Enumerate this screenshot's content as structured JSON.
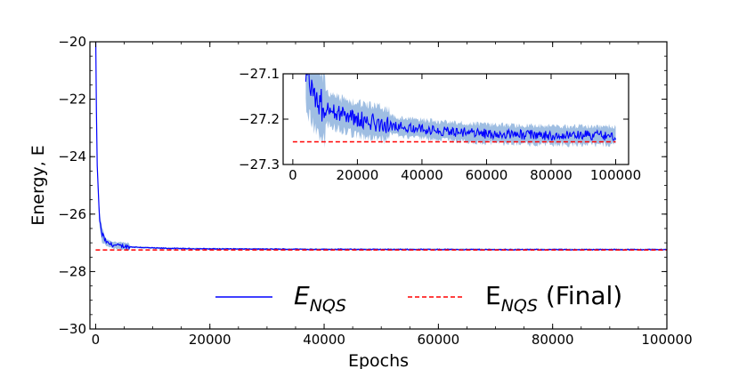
{
  "chart_data": [
    {
      "id": "main",
      "type": "line",
      "xlabel": "Epochs",
      "ylabel": "Energy, E",
      "xlim": [
        -1000,
        100000
      ],
      "ylim": [
        -30,
        -20
      ],
      "xticks": [
        0,
        20000,
        40000,
        60000,
        80000,
        100000
      ],
      "xtick_labels": [
        "0",
        "20000",
        "40000",
        "60000",
        "80000",
        "100000"
      ],
      "yticks": [
        -30,
        -28,
        -26,
        -24,
        -22,
        -20
      ],
      "ytick_labels": [
        "−30",
        "−28",
        "−26",
        "−24",
        "−22",
        "−20"
      ],
      "legend": {
        "placement": "lower-right",
        "entries": [
          {
            "label_main": "E",
            "label_sub": "NQS",
            "italic": true,
            "style": "solid",
            "color": "#0000ff"
          },
          {
            "label_main": "E",
            "label_sub": "NQS",
            "suffix": " (Final)",
            "italic": false,
            "style": "dashed",
            "color": "#ff0000"
          }
        ]
      },
      "series": [
        {
          "name": "E_NQS",
          "color": "#0000ff",
          "band_color": "#7fa8d8",
          "x": [
            0,
            100,
            250,
            500,
            800,
            1200,
            1600,
            2000,
            2600,
            3200,
            4000,
            5000,
            6000,
            7000,
            8000,
            10000,
            12000,
            15000,
            20000,
            30000,
            40000,
            50000,
            60000,
            70000,
            80000,
            90000,
            100000
          ],
          "y": [
            -19.5,
            -22.0,
            -24.0,
            -25.6,
            -26.4,
            -26.75,
            -26.9,
            -27.0,
            -27.05,
            -27.08,
            -27.1,
            -27.12,
            -27.14,
            -27.15,
            -27.16,
            -27.18,
            -27.19,
            -27.2,
            -27.21,
            -27.22,
            -27.225,
            -27.23,
            -27.23,
            -27.235,
            -27.235,
            -27.235,
            -27.235
          ]
        },
        {
          "name": "E_NQS (Final)",
          "color": "#ff0000",
          "dashed": true,
          "x": [
            0,
            100000
          ],
          "y": [
            -27.25,
            -27.25
          ]
        }
      ]
    },
    {
      "id": "inset",
      "type": "line",
      "xlim": [
        -3000,
        104000
      ],
      "ylim": [
        -27.3,
        -27.1
      ],
      "xticks": [
        0,
        20000,
        40000,
        60000,
        80000,
        100000
      ],
      "xtick_labels": [
        "0",
        "20000",
        "40000",
        "60000",
        "80000",
        "100000"
      ],
      "yticks": [
        -27.3,
        -27.2,
        -27.1
      ],
      "ytick_labels": [
        "−27.3",
        "−27.2",
        "−27.1"
      ],
      "series": [
        {
          "name": "E_NQS",
          "color": "#0000ff",
          "band_color": "#7fa8d8",
          "x": [
            4000,
            6000,
            8000,
            10000,
            12000,
            15000,
            20000,
            25000,
            30000,
            35000,
            40000,
            45000,
            50000,
            55000,
            60000,
            65000,
            70000,
            75000,
            80000,
            85000,
            90000,
            95000,
            100000
          ],
          "y": [
            -27.1,
            -27.14,
            -27.165,
            -27.175,
            -27.18,
            -27.19,
            -27.2,
            -27.207,
            -27.213,
            -27.218,
            -27.222,
            -27.225,
            -27.228,
            -27.23,
            -27.232,
            -27.233,
            -27.234,
            -27.235,
            -27.235,
            -27.236,
            -27.236,
            -27.236,
            -27.236
          ]
        },
        {
          "name": "E_NQS (Final)",
          "color": "#ff0000",
          "dashed": true,
          "x": [
            0,
            100000
          ],
          "y": [
            -27.25,
            -27.25
          ]
        }
      ]
    }
  ]
}
